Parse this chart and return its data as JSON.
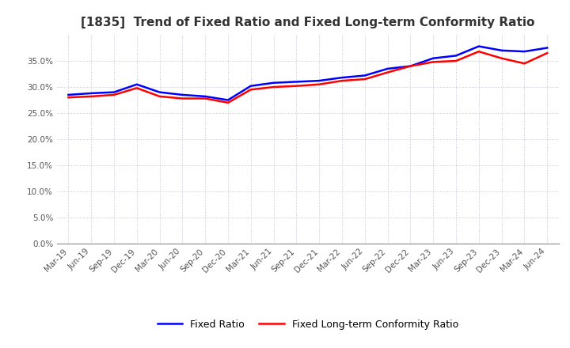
{
  "title": "[1835]  Trend of Fixed Ratio and Fixed Long-term Conformity Ratio",
  "x_labels": [
    "Mar-19",
    "Jun-19",
    "Sep-19",
    "Dec-19",
    "Mar-20",
    "Jun-20",
    "Sep-20",
    "Dec-20",
    "Mar-21",
    "Jun-21",
    "Sep-21",
    "Dec-21",
    "Mar-22",
    "Jun-22",
    "Sep-22",
    "Dec-22",
    "Mar-23",
    "Jun-23",
    "Sep-23",
    "Dec-23",
    "Mar-24",
    "Jun-24"
  ],
  "fixed_ratio": [
    28.5,
    28.8,
    29.0,
    30.5,
    29.0,
    28.5,
    28.2,
    27.5,
    30.2,
    30.8,
    31.0,
    31.2,
    31.8,
    32.2,
    33.5,
    34.0,
    35.5,
    36.0,
    37.8,
    37.0,
    36.8,
    37.5
  ],
  "fixed_ltcr": [
    28.0,
    28.2,
    28.5,
    29.8,
    28.2,
    27.8,
    27.8,
    27.0,
    29.5,
    30.0,
    30.2,
    30.5,
    31.2,
    31.5,
    32.8,
    34.0,
    34.8,
    35.0,
    36.8,
    35.5,
    34.5,
    36.5
  ],
  "fixed_ratio_color": "#0000FF",
  "fixed_ltcr_color": "#FF0000",
  "ylim": [
    0,
    40
  ],
  "yticks": [
    0.0,
    5.0,
    10.0,
    15.0,
    20.0,
    25.0,
    30.0,
    35.0
  ],
  "background_color": "#ffffff",
  "grid_color": "#aaaaaa",
  "legend_fixed_ratio": "Fixed Ratio",
  "legend_fixed_ltcr": "Fixed Long-term Conformity Ratio"
}
